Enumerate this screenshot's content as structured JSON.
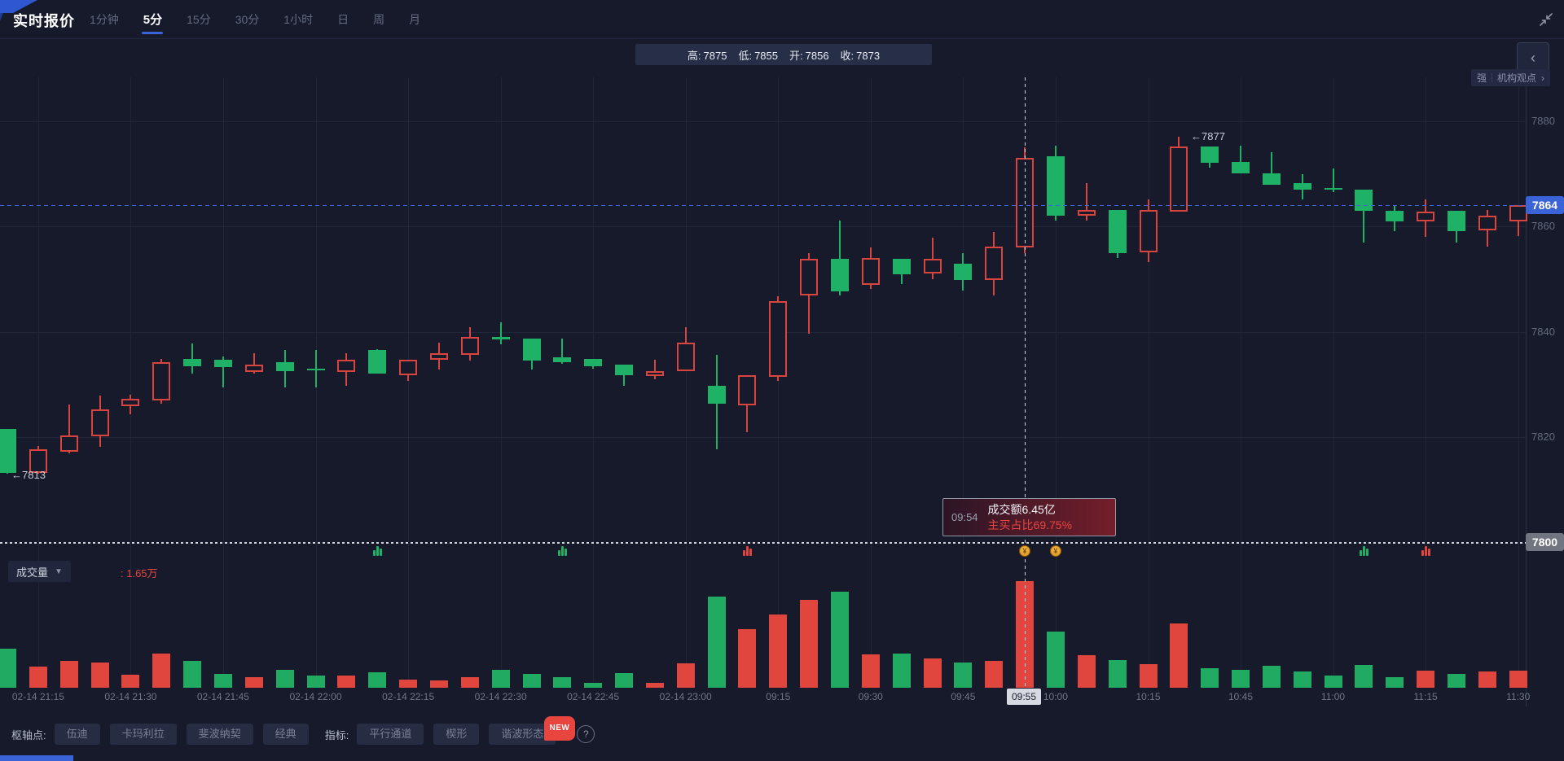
{
  "header": {
    "title": "实时报价",
    "tabs": [
      {
        "label": "1分钟",
        "active": false
      },
      {
        "label": "5分",
        "active": true
      },
      {
        "label": "15分",
        "active": false
      },
      {
        "label": "30分",
        "active": false
      },
      {
        "label": "1小时",
        "active": false
      },
      {
        "label": "日",
        "active": false
      },
      {
        "label": "周",
        "active": false
      },
      {
        "label": "月",
        "active": false
      }
    ]
  },
  "ohlc_bar": {
    "high_label": "高:",
    "high": "7875",
    "low_label": "低:",
    "low": "7855",
    "open_label": "开:",
    "open": "7856",
    "close_label": "收:",
    "close": "7873"
  },
  "side_panel": {
    "collapse_chevron": "‹",
    "strength_label": "强",
    "link_label": "机构观点",
    "link_chevron": "›"
  },
  "annotations": {
    "low_marker": "←7813",
    "high_marker": "←7877"
  },
  "crosshair": {
    "axis_label": "09:55",
    "tooltip": {
      "time": "09:54",
      "line1": "成交额6.45亿",
      "line2": "主买占比69.75%"
    }
  },
  "volume_header": {
    "label": "成交量",
    "value": ": 1.65万"
  },
  "price_axis": {
    "last_price_badge": "7864",
    "level_badge": "7800"
  },
  "toolbar": {
    "pivot_label": "枢轴点:",
    "pivot_buttons": [
      "伍迪",
      "卡玛利拉",
      "斐波纳契",
      "经典"
    ],
    "indicator_label": "指标:",
    "indicator_buttons": [
      "平行通道",
      "楔形",
      "谐波形态"
    ],
    "new_badge": "NEW",
    "help": "?"
  },
  "colors": {
    "up_red": "#d8453e",
    "down_green": "#1fb266",
    "accent_blue": "#3b63d8",
    "badge_gray": "#70757f",
    "value_red": "#e8453f",
    "coin_gold": "#e8a020"
  },
  "chart_data": {
    "type": "candlestick+volume",
    "title": "实时报价 5分 (futures 5-minute candles)",
    "price_axis_ticks": [
      7880,
      7860,
      7840,
      7820
    ],
    "level_line": 7800,
    "last_price": 7864,
    "high_of_day": 7877,
    "low_of_day": 7813,
    "volume_unit": "万",
    "crosshair_index": 33,
    "x_labels": [
      {
        "text": "02-14 21:15",
        "i": 1
      },
      {
        "text": "02-14 21:30",
        "i": 4
      },
      {
        "text": "02-14 21:45",
        "i": 7
      },
      {
        "text": "02-14 22:00",
        "i": 10
      },
      {
        "text": "02-14 22:15",
        "i": 13
      },
      {
        "text": "02-14 22:30",
        "i": 16
      },
      {
        "text": "02-14 22:45",
        "i": 19
      },
      {
        "text": "02-14 23:00",
        "i": 22
      },
      {
        "text": "09:15",
        "i": 25
      },
      {
        "text": "09:30",
        "i": 28
      },
      {
        "text": "09:45",
        "i": 31
      },
      {
        "text": "10:00",
        "i": 34
      },
      {
        "text": "10:15",
        "i": 37
      },
      {
        "text": "10:45",
        "i": 40
      },
      {
        "text": "11:00",
        "i": 43
      },
      {
        "text": "11:15",
        "i": 46
      },
      {
        "text": "11:30",
        "i": 49
      }
    ],
    "candles": [
      {
        "t": "21:10",
        "o": 7821.5,
        "h": 7821.5,
        "l": 7813.0,
        "c": 7813.2,
        "v": 0.6
      },
      {
        "t": "21:15",
        "o": 7813.2,
        "h": 7818.4,
        "l": 7813.0,
        "c": 7817.7,
        "v": 0.33
      },
      {
        "t": "21:20",
        "o": 7817.3,
        "h": 7826.2,
        "l": 7817.0,
        "c": 7820.3,
        "v": 0.42
      },
      {
        "t": "21:25",
        "o": 7820.2,
        "h": 7827.9,
        "l": 7818.1,
        "c": 7825.3,
        "v": 0.39
      },
      {
        "t": "21:30",
        "o": 7825.9,
        "h": 7828.0,
        "l": 7824.4,
        "c": 7827.3,
        "v": 0.2
      },
      {
        "t": "21:35",
        "o": 7826.9,
        "h": 7834.8,
        "l": 7826.3,
        "c": 7834.3,
        "v": 0.53
      },
      {
        "t": "21:40",
        "o": 7834.8,
        "h": 7837.8,
        "l": 7832.0,
        "c": 7833.4,
        "v": 0.42
      },
      {
        "t": "21:45",
        "o": 7834.7,
        "h": 7835.4,
        "l": 7829.4,
        "c": 7833.3,
        "v": 0.21
      },
      {
        "t": "21:50",
        "o": 7832.4,
        "h": 7836.0,
        "l": 7832.0,
        "c": 7833.8,
        "v": 0.16
      },
      {
        "t": "21:55",
        "o": 7834.3,
        "h": 7836.6,
        "l": 7829.5,
        "c": 7832.6,
        "v": 0.28
      },
      {
        "t": "22:00",
        "o": 7833.0,
        "h": 7836.6,
        "l": 7829.4,
        "c": 7832.7,
        "v": 0.19
      },
      {
        "t": "22:05",
        "o": 7832.4,
        "h": 7835.9,
        "l": 7829.7,
        "c": 7834.7,
        "v": 0.19
      },
      {
        "t": "22:10",
        "o": 7836.5,
        "h": 7836.7,
        "l": 7832.0,
        "c": 7832.1,
        "v": 0.24
      },
      {
        "t": "22:15",
        "o": 7831.7,
        "h": 7834.7,
        "l": 7830.7,
        "c": 7834.7,
        "v": 0.13
      },
      {
        "t": "22:20",
        "o": 7834.7,
        "h": 7837.9,
        "l": 7832.8,
        "c": 7836.0,
        "v": 0.11
      },
      {
        "t": "22:25",
        "o": 7835.6,
        "h": 7840.9,
        "l": 7834.6,
        "c": 7839.0,
        "v": 0.16
      },
      {
        "t": "22:30",
        "o": 7839.0,
        "h": 7841.8,
        "l": 7837.7,
        "c": 7838.6,
        "v": 0.28
      },
      {
        "t": "22:35",
        "o": 7838.8,
        "h": 7838.8,
        "l": 7832.8,
        "c": 7834.6,
        "v": 0.21
      },
      {
        "t": "22:40",
        "o": 7835.1,
        "h": 7838.8,
        "l": 7834.0,
        "c": 7834.3,
        "v": 0.16
      },
      {
        "t": "22:45",
        "o": 7834.8,
        "h": 7834.8,
        "l": 7833.0,
        "c": 7833.4,
        "v": 0.08
      },
      {
        "t": "22:50",
        "o": 7833.8,
        "h": 7833.8,
        "l": 7829.7,
        "c": 7831.7,
        "v": 0.23
      },
      {
        "t": "22:55",
        "o": 7831.6,
        "h": 7834.7,
        "l": 7831.0,
        "c": 7832.6,
        "v": 0.08
      },
      {
        "t": "23:00",
        "o": 7832.5,
        "h": 7840.9,
        "l": 7832.5,
        "c": 7837.9,
        "v": 0.38
      },
      {
        "t": "09:05",
        "o": 7829.7,
        "h": 7835.7,
        "l": 7817.7,
        "c": 7826.4,
        "v": 1.41
      },
      {
        "t": "09:10",
        "o": 7826.1,
        "h": 7831.7,
        "l": 7820.9,
        "c": 7831.7,
        "v": 0.91
      },
      {
        "t": "09:15",
        "o": 7831.5,
        "h": 7846.7,
        "l": 7830.7,
        "c": 7845.9,
        "v": 1.13
      },
      {
        "t": "09:20",
        "o": 7846.9,
        "h": 7854.9,
        "l": 7839.7,
        "c": 7853.9,
        "v": 1.36
      },
      {
        "t": "09:25",
        "o": 7853.9,
        "h": 7861.1,
        "l": 7846.9,
        "c": 7847.7,
        "v": 1.49
      },
      {
        "t": "09:30",
        "o": 7849.0,
        "h": 7856.0,
        "l": 7848.2,
        "c": 7854.1,
        "v": 0.52
      },
      {
        "t": "09:35",
        "o": 7853.9,
        "h": 7853.9,
        "l": 7849.0,
        "c": 7851.0,
        "v": 0.53
      },
      {
        "t": "09:40",
        "o": 7851.1,
        "h": 7857.9,
        "l": 7850.0,
        "c": 7853.9,
        "v": 0.45
      },
      {
        "t": "09:45",
        "o": 7853.0,
        "h": 7855.0,
        "l": 7847.8,
        "c": 7849.9,
        "v": 0.39
      },
      {
        "t": "09:50",
        "o": 7849.8,
        "h": 7859.0,
        "l": 7846.9,
        "c": 7856.2,
        "v": 0.42
      },
      {
        "t": "09:55",
        "o": 7856.0,
        "h": 7875.0,
        "l": 7855.0,
        "c": 7873.0,
        "v": 1.65
      },
      {
        "t": "10:00",
        "o": 7873.3,
        "h": 7875.4,
        "l": 7861.1,
        "c": 7862.0,
        "v": 0.87
      },
      {
        "t": "10:05",
        "o": 7862.0,
        "h": 7868.2,
        "l": 7861.1,
        "c": 7863.2,
        "v": 0.5
      },
      {
        "t": "10:10",
        "o": 7863.2,
        "h": 7863.2,
        "l": 7854.0,
        "c": 7854.9,
        "v": 0.43
      },
      {
        "t": "10:15",
        "o": 7855.1,
        "h": 7865.1,
        "l": 7853.2,
        "c": 7863.2,
        "v": 0.37
      },
      {
        "t": "10:35",
        "o": 7862.9,
        "h": 7877.0,
        "l": 7862.9,
        "c": 7875.2,
        "v": 1.0
      },
      {
        "t": "10:40",
        "o": 7875.2,
        "h": 7875.2,
        "l": 7871.2,
        "c": 7872.1,
        "v": 0.3
      },
      {
        "t": "10:45",
        "o": 7872.2,
        "h": 7875.4,
        "l": 7870.1,
        "c": 7870.1,
        "v": 0.28
      },
      {
        "t": "10:50",
        "o": 7870.1,
        "h": 7874.1,
        "l": 7868.0,
        "c": 7868.0,
        "v": 0.34
      },
      {
        "t": "10:55",
        "o": 7868.3,
        "h": 7870.0,
        "l": 7865.1,
        "c": 7867.0,
        "v": 0.25
      },
      {
        "t": "11:00",
        "o": 7867.3,
        "h": 7871.0,
        "l": 7866.5,
        "c": 7867.0,
        "v": 0.19
      },
      {
        "t": "11:05",
        "o": 7867.0,
        "h": 7867.0,
        "l": 7857.0,
        "c": 7863.0,
        "v": 0.35
      },
      {
        "t": "11:10",
        "o": 7863.0,
        "h": 7864.0,
        "l": 7859.1,
        "c": 7860.9,
        "v": 0.16
      },
      {
        "t": "11:15",
        "o": 7860.9,
        "h": 7865.2,
        "l": 7858.0,
        "c": 7862.8,
        "v": 0.27
      },
      {
        "t": "11:20",
        "o": 7863.0,
        "h": 7863.0,
        "l": 7857.0,
        "c": 7859.1,
        "v": 0.21
      },
      {
        "t": "11:25",
        "o": 7859.2,
        "h": 7863.2,
        "l": 7856.1,
        "c": 7862.1,
        "v": 0.25
      },
      {
        "t": "11:30",
        "o": 7860.9,
        "h": 7864.0,
        "l": 7858.2,
        "c": 7864.0,
        "v": 0.26
      }
    ],
    "markers": [
      {
        "i": 12,
        "kind": "green-signal"
      },
      {
        "i": 18,
        "kind": "green-signal"
      },
      {
        "i": 24,
        "kind": "red-signal"
      },
      {
        "i": 33,
        "kind": "coin"
      },
      {
        "i": 34,
        "kind": "coin"
      },
      {
        "i": 44,
        "kind": "green-signal"
      },
      {
        "i": 46,
        "kind": "red-signal"
      }
    ]
  }
}
